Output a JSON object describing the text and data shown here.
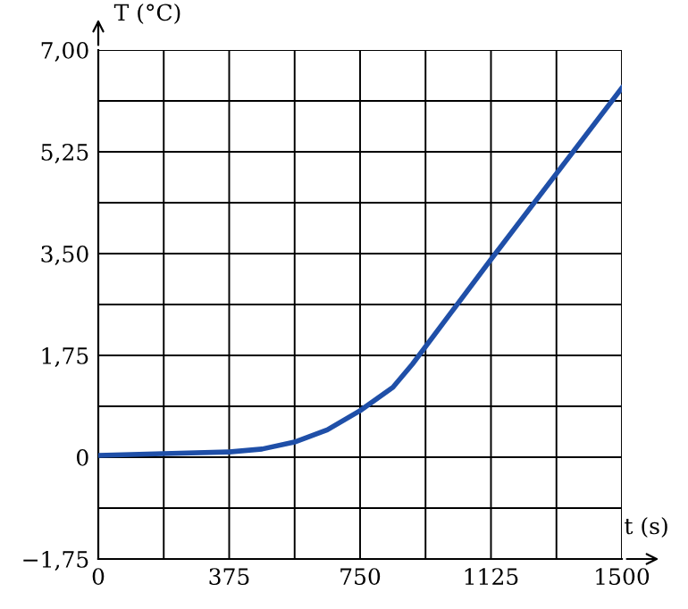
{
  "chart_data": {
    "type": "line",
    "xlabel": "t (s)",
    "ylabel": "T (°C)",
    "x": [
      0,
      187.5,
      375,
      469,
      562,
      656,
      750,
      844,
      900,
      1125,
      1500
    ],
    "series": [
      {
        "color": "#1f4fa8",
        "values": [
          0.03,
          0.06,
          0.09,
          0.14,
          0.26,
          0.47,
          0.8,
          1.2,
          1.6,
          3.4,
          6.35
        ]
      }
    ],
    "xlim": [
      0,
      1500
    ],
    "ylim": [
      -1.75,
      7
    ],
    "xticks": [
      0,
      {
        "value": 187.5,
        "label": null
      },
      375,
      {
        "value": 562.5,
        "label": null
      },
      750,
      {
        "value": 937.5,
        "label": null
      },
      1125,
      {
        "value": 1312.5,
        "label": null
      },
      1500
    ],
    "yticks": [
      {
        "value": -1.75,
        "label": "−1,75"
      },
      {
        "value": -0.875,
        "label": null
      },
      0,
      {
        "value": 0.875,
        "label": null
      },
      {
        "value": 1.75,
        "label": "1,75"
      },
      {
        "value": 2.625,
        "label": null
      },
      {
        "value": 3.5,
        "label": "3,50"
      },
      {
        "value": 4.375,
        "label": null
      },
      {
        "value": 5.25,
        "label": "5,25"
      },
      {
        "value": 6.125,
        "label": null
      },
      {
        "value": 7,
        "label": "7,00"
      }
    ],
    "grid": true,
    "marker": "none",
    "line_style": "solid"
  }
}
